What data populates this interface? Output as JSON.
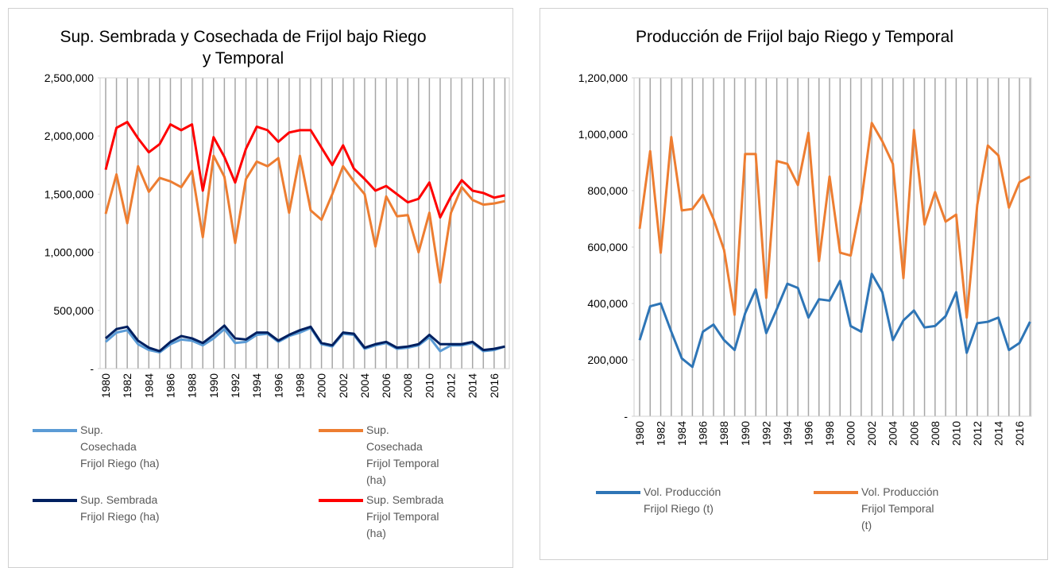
{
  "chart_data": [
    {
      "type": "line",
      "title": "Sup. Sembrada y Cosechada de Frijol bajo Riego y Temporal",
      "categories": [
        "1980",
        null,
        "1982",
        null,
        "1984",
        null,
        "1986",
        null,
        "1988",
        null,
        "1990",
        null,
        "1992",
        null,
        "1994",
        null,
        "1996",
        null,
        "1998",
        null,
        "2000",
        null,
        "2002",
        null,
        "2004",
        null,
        "2006",
        null,
        "2008",
        null,
        "2010",
        null,
        "2012",
        null,
        "2014",
        null,
        "2016",
        null
      ],
      "ylim": [
        0,
        2500000
      ],
      "yticks": [
        {
          "value": 0,
          "label": "-"
        },
        {
          "value": 500000,
          "label": "500,000"
        },
        {
          "value": 1000000,
          "label": "1,000,000"
        },
        {
          "value": 1500000,
          "label": "1,500,000"
        },
        {
          "value": 2000000,
          "label": "2,000,000"
        },
        {
          "value": 2500000,
          "label": "2,500,000"
        }
      ],
      "grid": "vertical",
      "series": [
        {
          "name": "Sup. Cosechada Frijol Riego (ha)",
          "color": "#5b9bd5",
          "values": [
            230000,
            310000,
            330000,
            210000,
            160000,
            140000,
            210000,
            250000,
            240000,
            200000,
            260000,
            340000,
            220000,
            230000,
            290000,
            300000,
            230000,
            280000,
            310000,
            350000,
            210000,
            190000,
            300000,
            290000,
            170000,
            200000,
            220000,
            170000,
            180000,
            200000,
            270000,
            150000,
            200000,
            200000,
            220000,
            150000,
            160000,
            190000
          ]
        },
        {
          "name": "Sup. Cosechada Frijol Temporal (ha)",
          "color": "#ed7d31",
          "values": [
            1330000,
            1670000,
            1250000,
            1740000,
            1520000,
            1640000,
            1610000,
            1560000,
            1700000,
            1130000,
            1830000,
            1650000,
            1080000,
            1630000,
            1780000,
            1740000,
            1810000,
            1340000,
            1830000,
            1360000,
            1280000,
            1500000,
            1740000,
            1610000,
            1500000,
            1050000,
            1480000,
            1310000,
            1320000,
            1000000,
            1340000,
            740000,
            1340000,
            1560000,
            1450000,
            1410000,
            1420000,
            1440000
          ]
        },
        {
          "name": "Sup. Sembrada Frijol Riego (ha)",
          "color": "#002060",
          "values": [
            260000,
            340000,
            360000,
            240000,
            180000,
            150000,
            230000,
            280000,
            260000,
            220000,
            290000,
            370000,
            260000,
            250000,
            310000,
            310000,
            240000,
            290000,
            330000,
            360000,
            220000,
            200000,
            310000,
            300000,
            180000,
            210000,
            230000,
            180000,
            190000,
            210000,
            290000,
            210000,
            210000,
            210000,
            230000,
            160000,
            170000,
            190000
          ]
        },
        {
          "name": "Sup. Sembrada Frijol Temporal (ha)",
          "color": "#ff0000",
          "values": [
            1710000,
            2070000,
            2120000,
            1980000,
            1860000,
            1930000,
            2100000,
            2050000,
            2100000,
            1530000,
            1990000,
            1820000,
            1600000,
            1890000,
            2080000,
            2050000,
            1950000,
            2030000,
            2050000,
            2050000,
            1900000,
            1750000,
            1920000,
            1720000,
            1630000,
            1530000,
            1570000,
            1500000,
            1430000,
            1460000,
            1600000,
            1300000,
            1480000,
            1620000,
            1530000,
            1510000,
            1470000,
            1490000
          ]
        }
      ]
    },
    {
      "type": "line",
      "title": "Producción de Frijol bajo Riego y Temporal",
      "categories": [
        "1980",
        null,
        "1982",
        null,
        "1984",
        null,
        "1986",
        null,
        "1988",
        null,
        "1990",
        null,
        "1992",
        null,
        "1994",
        null,
        "1996",
        null,
        "1998",
        null,
        "2000",
        null,
        "2002",
        null,
        "2004",
        null,
        "2006",
        null,
        "2008",
        null,
        "2010",
        null,
        "2012",
        null,
        "2014",
        null,
        "2016",
        null
      ],
      "ylim": [
        0,
        1200000
      ],
      "yticks": [
        {
          "value": 0,
          "label": "-"
        },
        {
          "value": 200000,
          "label": "200,000"
        },
        {
          "value": 400000,
          "label": "400,000"
        },
        {
          "value": 600000,
          "label": "600,000"
        },
        {
          "value": 800000,
          "label": "800,000"
        },
        {
          "value": 1000000,
          "label": "1,000,000"
        },
        {
          "value": 1200000,
          "label": "1,200,000"
        }
      ],
      "grid": "vertical",
      "series": [
        {
          "name": "Vol. Producción Frijol Riego (t)",
          "color": "#2e75b6",
          "values": [
            270000,
            390000,
            400000,
            300000,
            205000,
            175000,
            300000,
            325000,
            270000,
            235000,
            365000,
            450000,
            295000,
            380000,
            470000,
            455000,
            350000,
            415000,
            410000,
            480000,
            320000,
            300000,
            505000,
            440000,
            270000,
            340000,
            375000,
            315000,
            320000,
            355000,
            440000,
            225000,
            330000,
            335000,
            350000,
            235000,
            260000,
            335000
          ]
        },
        {
          "name": "Vol. Producción Frijol Temporal (t)",
          "color": "#ed7d31",
          "values": [
            665000,
            940000,
            580000,
            990000,
            730000,
            735000,
            785000,
            700000,
            590000,
            360000,
            930000,
            930000,
            420000,
            905000,
            895000,
            820000,
            1005000,
            550000,
            850000,
            580000,
            570000,
            760000,
            1040000,
            975000,
            895000,
            490000,
            1015000,
            680000,
            795000,
            690000,
            715000,
            350000,
            750000,
            960000,
            925000,
            740000,
            830000,
            850000
          ]
        }
      ]
    }
  ]
}
